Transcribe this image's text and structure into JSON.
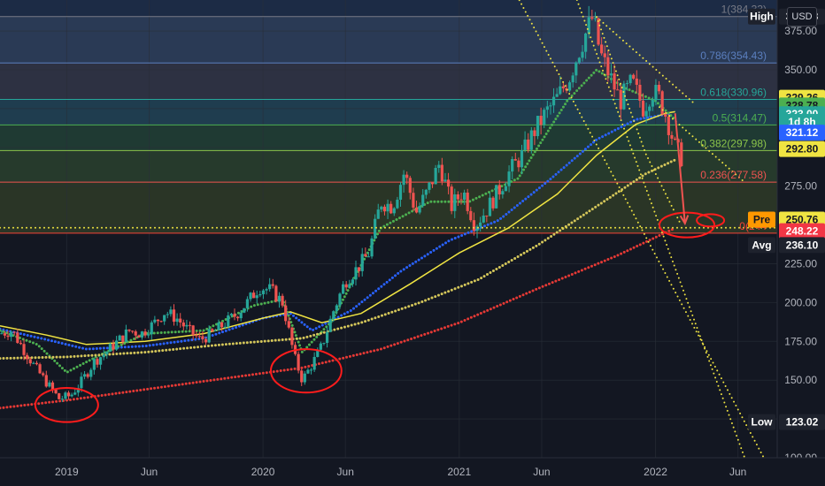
{
  "header": {
    "currency_label": "USD"
  },
  "chart_data": {
    "type": "candlestick",
    "title": "",
    "xlabel": "",
    "ylabel": "",
    "ylim": [
      100,
      395
    ],
    "grid": true,
    "y_ticks": [
      100,
      125,
      150,
      175,
      200,
      225,
      250,
      275,
      300,
      325,
      350,
      375
    ],
    "y_tick_labels": [
      "100.00",
      "125.00",
      "150.00",
      "175.00",
      "200.00",
      "225.00",
      "250.00",
      "275.00",
      "300.00",
      "325.00",
      "350.00",
      "375.00"
    ],
    "x_ticks": [
      {
        "t": 2019.0,
        "label": "2019"
      },
      {
        "t": 2019.42,
        "label": "Jun"
      },
      {
        "t": 2020.0,
        "label": "2020"
      },
      {
        "t": 2020.42,
        "label": "Jun"
      },
      {
        "t": 2021.0,
        "label": "2021"
      },
      {
        "t": 2021.42,
        "label": "Jun"
      },
      {
        "t": 2022.0,
        "label": "2022"
      },
      {
        "t": 2022.42,
        "label": "Jun"
      }
    ],
    "x_range": [
      2018.66,
      2022.62
    ],
    "price_path": [
      [
        2018.66,
        180
      ],
      [
        2018.72,
        182
      ],
      [
        2018.78,
        170
      ],
      [
        2018.84,
        158
      ],
      [
        2018.9,
        148
      ],
      [
        2018.96,
        138
      ],
      [
        2019.02,
        140
      ],
      [
        2019.08,
        150
      ],
      [
        2019.14,
        162
      ],
      [
        2019.2,
        168
      ],
      [
        2019.26,
        175
      ],
      [
        2019.32,
        182
      ],
      [
        2019.38,
        180
      ],
      [
        2019.44,
        186
      ],
      [
        2019.5,
        194
      ],
      [
        2019.56,
        190
      ],
      [
        2019.62,
        182
      ],
      [
        2019.68,
        176
      ],
      [
        2019.74,
        180
      ],
      [
        2019.8,
        186
      ],
      [
        2019.86,
        192
      ],
      [
        2019.92,
        200
      ],
      [
        2019.98,
        210
      ],
      [
        2020.04,
        208
      ],
      [
        2020.1,
        200
      ],
      [
        2020.16,
        165
      ],
      [
        2020.2,
        150
      ],
      [
        2020.24,
        158
      ],
      [
        2020.3,
        172
      ],
      [
        2020.36,
        195
      ],
      [
        2020.42,
        214
      ],
      [
        2020.48,
        222
      ],
      [
        2020.54,
        232
      ],
      [
        2020.6,
        265
      ],
      [
        2020.66,
        262
      ],
      [
        2020.72,
        284
      ],
      [
        2020.78,
        258
      ],
      [
        2020.84,
        272
      ],
      [
        2020.9,
        290
      ],
      [
        2020.96,
        262
      ],
      [
        2021.02,
        272
      ],
      [
        2021.08,
        250
      ],
      [
        2021.14,
        260
      ],
      [
        2021.2,
        272
      ],
      [
        2021.26,
        285
      ],
      [
        2021.32,
        295
      ],
      [
        2021.38,
        310
      ],
      [
        2021.44,
        322
      ],
      [
        2021.5,
        332
      ],
      [
        2021.56,
        345
      ],
      [
        2021.62,
        366
      ],
      [
        2021.68,
        384
      ],
      [
        2021.72,
        360
      ],
      [
        2021.76,
        348
      ],
      [
        2021.82,
        330
      ],
      [
        2021.88,
        342
      ],
      [
        2021.94,
        325
      ],
      [
        2021.98,
        337
      ],
      [
        2022.02,
        332
      ],
      [
        2022.06,
        318
      ],
      [
        2022.1,
        300
      ],
      [
        2022.14,
        292
      ]
    ],
    "moving_averages": [
      {
        "color": "#2962ff",
        "style": "dotted",
        "points": [
          [
            2018.66,
            183
          ],
          [
            2018.9,
            176
          ],
          [
            2019.1,
            170
          ],
          [
            2019.4,
            172
          ],
          [
            2019.7,
            177
          ],
          [
            2020.0,
            190
          ],
          [
            2020.14,
            193
          ],
          [
            2020.25,
            182
          ],
          [
            2020.45,
            195
          ],
          [
            2020.7,
            220
          ],
          [
            2020.95,
            240
          ],
          [
            2021.2,
            253
          ],
          [
            2021.45,
            278
          ],
          [
            2021.7,
            305
          ],
          [
            2021.9,
            318
          ],
          [
            2022.0,
            320
          ],
          [
            2022.08,
            322
          ]
        ]
      },
      {
        "color": "#f0e442",
        "style": "solid",
        "points": [
          [
            2018.66,
            185
          ],
          [
            2018.9,
            179
          ],
          [
            2019.1,
            173
          ],
          [
            2019.4,
            175
          ],
          [
            2019.7,
            180
          ],
          [
            2020.0,
            190
          ],
          [
            2020.14,
            194
          ],
          [
            2020.3,
            187
          ],
          [
            2020.5,
            193
          ],
          [
            2020.75,
            212
          ],
          [
            2021.0,
            232
          ],
          [
            2021.25,
            248
          ],
          [
            2021.5,
            270
          ],
          [
            2021.7,
            295
          ],
          [
            2021.9,
            315
          ],
          [
            2022.05,
            322
          ],
          [
            2022.1,
            323
          ]
        ]
      },
      {
        "color": "#4caf50",
        "style": "dotted",
        "points": [
          [
            2018.66,
            182
          ],
          [
            2018.85,
            173
          ],
          [
            2019.0,
            155
          ],
          [
            2019.15,
            165
          ],
          [
            2019.4,
            180
          ],
          [
            2019.7,
            182
          ],
          [
            2019.95,
            198
          ],
          [
            2020.1,
            202
          ],
          [
            2020.2,
            168
          ],
          [
            2020.35,
            188
          ],
          [
            2020.6,
            248
          ],
          [
            2020.85,
            265
          ],
          [
            2021.05,
            265
          ],
          [
            2021.3,
            280
          ],
          [
            2021.55,
            330
          ],
          [
            2021.7,
            350
          ],
          [
            2021.85,
            338
          ],
          [
            2022.0,
            330
          ],
          [
            2022.1,
            318
          ]
        ]
      },
      {
        "color": "#d4c65a",
        "style": "dotted",
        "points": [
          [
            2018.66,
            164
          ],
          [
            2019.0,
            165
          ],
          [
            2019.4,
            168
          ],
          [
            2019.8,
            173
          ],
          [
            2020.2,
            177
          ],
          [
            2020.5,
            187
          ],
          [
            2020.8,
            200
          ],
          [
            2021.1,
            215
          ],
          [
            2021.4,
            237
          ],
          [
            2021.7,
            262
          ],
          [
            2021.95,
            283
          ],
          [
            2022.1,
            292
          ]
        ]
      },
      {
        "color": "#e53935",
        "style": "dotted",
        "points": [
          [
            2018.66,
            132
          ],
          [
            2019.0,
            137
          ],
          [
            2019.4,
            144
          ],
          [
            2019.8,
            151
          ],
          [
            2020.2,
            158
          ],
          [
            2020.6,
            170
          ],
          [
            2021.0,
            187
          ],
          [
            2021.4,
            209
          ],
          [
            2021.8,
            230
          ],
          [
            2022.1,
            248
          ]
        ]
      }
    ],
    "fibonacci": [
      {
        "level": "1",
        "value": 384.33,
        "label": "1(384.33)",
        "band_color": "#2a3a55"
      },
      {
        "level": "0.786",
        "value": 354.43,
        "label": "0.786(354.43)",
        "band_color": "#2d3142"
      },
      {
        "level": "0.618",
        "value": 330.96,
        "label": "0.618(330.96)",
        "band_color": "#1f3d4f"
      },
      {
        "level": "0.5",
        "value": 314.47,
        "label": "0.5(314.47)",
        "band_color": "#1f3a33"
      },
      {
        "level": "0.382",
        "value": 297.98,
        "label": "0.382(297.98)",
        "band_color": "#263a2c"
      },
      {
        "level": "0.236",
        "value": 277.58,
        "label": "0.236(277.58)",
        "band_color": "#2a3526"
      },
      {
        "level": "0",
        "value": 244.7,
        "label": "0(244",
        "band_color": "#3d1f24"
      }
    ],
    "fib_line_colors": [
      "#787b86",
      "#5b7fbf",
      "#26a69a",
      "#4caf50",
      "#8bc34a",
      "#ef5350",
      "#f44336"
    ],
    "trend_lines": [
      {
        "color": "#f0e442",
        "points": [
          [
            2021.2,
            420
          ],
          [
            2022.56,
            98
          ]
        ]
      },
      {
        "color": "#f0e442",
        "points": [
          [
            2021.6,
            395
          ],
          [
            2022.46,
            98
          ]
        ]
      },
      {
        "color": "#f0e442",
        "points": [
          [
            2021.7,
            384
          ],
          [
            2022.2,
            328
          ]
        ]
      },
      {
        "color": "#f0e442",
        "points": [
          [
            2022.02,
            326
          ],
          [
            2022.45,
            278
          ]
        ]
      },
      {
        "color": "#f0e442",
        "points": [
          [
            2021.7,
            384
          ],
          [
            2021.95,
            296
          ],
          [
            2022.13,
            250
          ]
        ]
      }
    ],
    "horizontal_dotted": {
      "value": 248.22,
      "color": "#f0e442"
    },
    "projection_arrow": {
      "color": "#ef5350",
      "from": [
        2022.1,
        322
      ],
      "to": [
        2022.15,
        251
      ]
    },
    "circles": [
      {
        "color": "#ff1c1c",
        "cx": 2019.0,
        "cy": 134,
        "rx": 0.16,
        "ry": 11
      },
      {
        "color": "#ff1c1c",
        "cx": 2020.22,
        "cy": 156,
        "rx": 0.18,
        "ry": 14
      },
      {
        "color": "#ff1c1c",
        "cx": 2022.16,
        "cy": 250,
        "rx": 0.14,
        "ry": 8
      },
      {
        "color": "#ff1c1c",
        "cx": 2022.28,
        "cy": 253,
        "rx": 0.07,
        "ry": 4
      }
    ],
    "price_labels": [
      {
        "tag": "High",
        "value": "384.33",
        "y": 384.33,
        "bg": "#1e222d",
        "fg": "#ffffff",
        "tag_bg": "#1e222d"
      },
      {
        "tag": "",
        "value": "329.26",
        "y": 332.0,
        "bg": "#f0e442",
        "fg": "#131722"
      },
      {
        "tag": "",
        "value": "328.78",
        "y": 327.0,
        "bg": "#4caf50",
        "fg": "#131722"
      },
      {
        "tag": "",
        "value": "323.00",
        "y": 321.4,
        "bg": "#26a69a",
        "fg": "#ffffff"
      },
      {
        "tag": "",
        "value": "1d 8h",
        "y": 316.5,
        "bg": "#26a69a",
        "fg": "#ffffff"
      },
      {
        "tag": "",
        "value": "321.12",
        "y": 309.5,
        "bg": "#2962ff",
        "fg": "#ffffff"
      },
      {
        "tag": "",
        "value": "292.80",
        "y": 299.0,
        "bg": "#f0e442",
        "fg": "#131722"
      },
      {
        "tag": "Pre",
        "value": "250.76",
        "y": 253.5,
        "bg": "#f0e442",
        "fg": "#131722",
        "tag_bg": "#ff9800"
      },
      {
        "tag": "",
        "value": "248.22",
        "y": 246.0,
        "bg": "#f23645",
        "fg": "#ffffff"
      },
      {
        "tag": "Avg",
        "value": "236.10",
        "y": 237.0,
        "bg": "#1e222d",
        "fg": "#ffffff",
        "tag_bg": "#1e222d"
      },
      {
        "tag": "Low",
        "value": "123.02",
        "y": 123.02,
        "bg": "#1e222d",
        "fg": "#ffffff",
        "tag_bg": "#1e222d"
      }
    ]
  }
}
